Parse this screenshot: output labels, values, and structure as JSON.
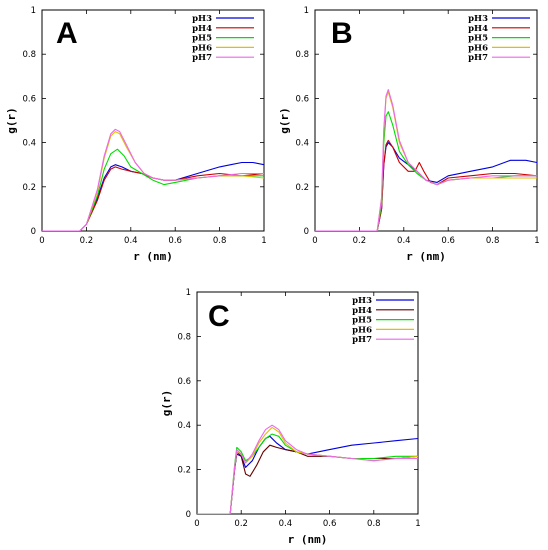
{
  "chart_data": [
    {
      "type": "line",
      "panel_label": "A",
      "xlabel": "r (nm)",
      "ylabel": "g(r)",
      "xlim": [
        0,
        1
      ],
      "ylim": [
        0,
        1
      ],
      "xticks": [
        "0",
        "0.2",
        "0.4",
        "0.6",
        "0.8",
        "1"
      ],
      "yticks": [
        "0",
        "0.2",
        "0.4",
        "0.6",
        "0.8",
        "1"
      ],
      "grid": false,
      "legend_position": "top-right",
      "series": [
        {
          "name": "pH3",
          "color": "#0000dd",
          "x": [
            0,
            0.17,
            0.2,
            0.25,
            0.28,
            0.31,
            0.33,
            0.36,
            0.4,
            0.45,
            0.5,
            0.55,
            0.6,
            0.7,
            0.8,
            0.85,
            0.9,
            0.95,
            1
          ],
          "y": [
            0,
            0,
            0.03,
            0.15,
            0.24,
            0.29,
            0.3,
            0.29,
            0.27,
            0.26,
            0.24,
            0.23,
            0.23,
            0.26,
            0.29,
            0.3,
            0.31,
            0.31,
            0.3
          ]
        },
        {
          "name": "pH4",
          "color": "#cc0000",
          "x": [
            0,
            0.17,
            0.2,
            0.25,
            0.28,
            0.31,
            0.33,
            0.36,
            0.4,
            0.45,
            0.5,
            0.55,
            0.6,
            0.7,
            0.8,
            0.9,
            1
          ],
          "y": [
            0,
            0,
            0.03,
            0.14,
            0.23,
            0.28,
            0.29,
            0.28,
            0.27,
            0.26,
            0.24,
            0.23,
            0.23,
            0.25,
            0.26,
            0.25,
            0.26
          ]
        },
        {
          "name": "pH5",
          "color": "#00dd00",
          "x": [
            0,
            0.17,
            0.2,
            0.25,
            0.28,
            0.31,
            0.34,
            0.37,
            0.4,
            0.45,
            0.5,
            0.55,
            0.6,
            0.7,
            0.8,
            0.9,
            1
          ],
          "y": [
            0,
            0,
            0.03,
            0.16,
            0.28,
            0.35,
            0.37,
            0.34,
            0.29,
            0.26,
            0.23,
            0.21,
            0.22,
            0.24,
            0.25,
            0.25,
            0.25
          ]
        },
        {
          "name": "pH6",
          "color": "#e0c000",
          "x": [
            0,
            0.17,
            0.2,
            0.25,
            0.28,
            0.31,
            0.33,
            0.35,
            0.38,
            0.42,
            0.46,
            0.5,
            0.55,
            0.6,
            0.7,
            0.8,
            0.9,
            1
          ],
          "y": [
            0,
            0,
            0.03,
            0.18,
            0.33,
            0.43,
            0.45,
            0.44,
            0.38,
            0.31,
            0.26,
            0.24,
            0.23,
            0.23,
            0.24,
            0.25,
            0.25,
            0.24
          ]
        },
        {
          "name": "pH7",
          "color": "#ee66ee",
          "x": [
            0,
            0.17,
            0.2,
            0.25,
            0.28,
            0.31,
            0.33,
            0.35,
            0.38,
            0.42,
            0.46,
            0.5,
            0.55,
            0.6,
            0.7,
            0.8,
            0.9,
            1
          ],
          "y": [
            0,
            0,
            0.03,
            0.19,
            0.34,
            0.44,
            0.46,
            0.45,
            0.39,
            0.31,
            0.26,
            0.24,
            0.23,
            0.23,
            0.24,
            0.25,
            0.26,
            0.26
          ]
        }
      ]
    },
    {
      "type": "line",
      "panel_label": "B",
      "xlabel": "r (nm)",
      "ylabel": "g(r)",
      "xlim": [
        0,
        1
      ],
      "ylim": [
        0,
        1
      ],
      "xticks": [
        "0",
        "0.2",
        "0.4",
        "0.6",
        "0.8",
        "1"
      ],
      "yticks": [
        "0",
        "0.2",
        "0.4",
        "0.6",
        "0.8",
        "1"
      ],
      "grid": false,
      "legend_position": "top-right",
      "series": [
        {
          "name": "pH3",
          "color": "#0000dd",
          "x": [
            0,
            0.28,
            0.3,
            0.31,
            0.32,
            0.33,
            0.35,
            0.38,
            0.42,
            0.46,
            0.5,
            0.55,
            0.6,
            0.7,
            0.8,
            0.88,
            0.95,
            1
          ],
          "y": [
            0,
            0,
            0.1,
            0.3,
            0.38,
            0.4,
            0.38,
            0.33,
            0.3,
            0.27,
            0.23,
            0.22,
            0.25,
            0.27,
            0.29,
            0.32,
            0.32,
            0.31
          ]
        },
        {
          "name": "pH4",
          "color": "#cc0000",
          "x": [
            0,
            0.28,
            0.3,
            0.31,
            0.32,
            0.33,
            0.35,
            0.38,
            0.42,
            0.45,
            0.47,
            0.49,
            0.52,
            0.55,
            0.6,
            0.7,
            0.8,
            0.9,
            1
          ],
          "y": [
            0,
            0,
            0.1,
            0.3,
            0.39,
            0.41,
            0.38,
            0.31,
            0.27,
            0.27,
            0.31,
            0.27,
            0.22,
            0.21,
            0.24,
            0.25,
            0.26,
            0.26,
            0.25
          ]
        },
        {
          "name": "pH5",
          "color": "#00dd00",
          "x": [
            0,
            0.28,
            0.3,
            0.31,
            0.32,
            0.33,
            0.35,
            0.38,
            0.42,
            0.46,
            0.5,
            0.55,
            0.6,
            0.7,
            0.8,
            0.9,
            1
          ],
          "y": [
            0,
            0,
            0.12,
            0.4,
            0.52,
            0.54,
            0.48,
            0.36,
            0.3,
            0.26,
            0.23,
            0.21,
            0.23,
            0.24,
            0.24,
            0.25,
            0.25
          ]
        },
        {
          "name": "pH6",
          "color": "#e0c000",
          "x": [
            0,
            0.28,
            0.3,
            0.31,
            0.32,
            0.33,
            0.35,
            0.38,
            0.42,
            0.46,
            0.5,
            0.55,
            0.6,
            0.7,
            0.8,
            0.9,
            1
          ],
          "y": [
            0,
            0,
            0.15,
            0.45,
            0.6,
            0.63,
            0.56,
            0.4,
            0.31,
            0.27,
            0.23,
            0.21,
            0.23,
            0.24,
            0.24,
            0.24,
            0.24
          ]
        },
        {
          "name": "pH7",
          "color": "#ee66ee",
          "x": [
            0,
            0.28,
            0.3,
            0.31,
            0.32,
            0.33,
            0.35,
            0.38,
            0.42,
            0.46,
            0.5,
            0.55,
            0.6,
            0.7,
            0.8,
            0.9,
            1
          ],
          "y": [
            0,
            0,
            0.15,
            0.46,
            0.61,
            0.64,
            0.57,
            0.41,
            0.31,
            0.27,
            0.23,
            0.21,
            0.23,
            0.24,
            0.25,
            0.25,
            0.25
          ]
        }
      ]
    },
    {
      "type": "line",
      "panel_label": "C",
      "xlabel": "r (nm)",
      "ylabel": "g(r)",
      "xlim": [
        0,
        1
      ],
      "ylim": [
        0,
        1
      ],
      "xticks": [
        "0",
        "0.2",
        "0.4",
        "0.6",
        "0.8",
        "1"
      ],
      "yticks": [
        "0",
        "0.2",
        "0.4",
        "0.6",
        "0.8",
        "1"
      ],
      "grid": false,
      "legend_position": "top-right",
      "series": [
        {
          "name": "pH3",
          "color": "#0000dd",
          "x": [
            0,
            0.15,
            0.17,
            0.18,
            0.2,
            0.22,
            0.25,
            0.28,
            0.31,
            0.33,
            0.36,
            0.4,
            0.45,
            0.5,
            0.6,
            0.7,
            0.8,
            0.9,
            1
          ],
          "y": [
            0,
            0,
            0.2,
            0.27,
            0.26,
            0.21,
            0.24,
            0.3,
            0.34,
            0.35,
            0.32,
            0.29,
            0.28,
            0.27,
            0.29,
            0.31,
            0.32,
            0.33,
            0.34
          ]
        },
        {
          "name": "pH4",
          "color": "#660000",
          "x": [
            0,
            0.15,
            0.17,
            0.18,
            0.2,
            0.22,
            0.24,
            0.27,
            0.3,
            0.33,
            0.36,
            0.4,
            0.45,
            0.5,
            0.6,
            0.7,
            0.8,
            0.9,
            1
          ],
          "y": [
            0,
            0,
            0.2,
            0.28,
            0.26,
            0.18,
            0.17,
            0.22,
            0.28,
            0.31,
            0.3,
            0.29,
            0.28,
            0.26,
            0.26,
            0.25,
            0.25,
            0.25,
            0.26
          ]
        },
        {
          "name": "pH5",
          "color": "#00dd00",
          "x": [
            0,
            0.15,
            0.17,
            0.18,
            0.2,
            0.22,
            0.25,
            0.28,
            0.31,
            0.34,
            0.37,
            0.4,
            0.45,
            0.5,
            0.6,
            0.7,
            0.8,
            0.9,
            1
          ],
          "y": [
            0,
            0,
            0.22,
            0.3,
            0.28,
            0.24,
            0.26,
            0.3,
            0.34,
            0.36,
            0.35,
            0.31,
            0.28,
            0.27,
            0.26,
            0.25,
            0.25,
            0.26,
            0.26
          ]
        },
        {
          "name": "pH6",
          "color": "#e0c000",
          "x": [
            0,
            0.15,
            0.17,
            0.18,
            0.2,
            0.22,
            0.25,
            0.28,
            0.31,
            0.34,
            0.37,
            0.4,
            0.45,
            0.5,
            0.6,
            0.7,
            0.8,
            0.9,
            1
          ],
          "y": [
            0,
            0,
            0.21,
            0.28,
            0.27,
            0.23,
            0.26,
            0.32,
            0.36,
            0.39,
            0.37,
            0.32,
            0.28,
            0.27,
            0.26,
            0.25,
            0.24,
            0.25,
            0.26
          ]
        },
        {
          "name": "pH7",
          "color": "#ee66ee",
          "x": [
            0,
            0.15,
            0.17,
            0.18,
            0.2,
            0.22,
            0.25,
            0.28,
            0.31,
            0.34,
            0.37,
            0.4,
            0.45,
            0.5,
            0.6,
            0.7,
            0.8,
            0.9,
            1
          ],
          "y": [
            0,
            0,
            0.21,
            0.29,
            0.27,
            0.23,
            0.27,
            0.33,
            0.38,
            0.4,
            0.38,
            0.33,
            0.29,
            0.27,
            0.26,
            0.25,
            0.24,
            0.25,
            0.25
          ]
        }
      ]
    }
  ]
}
